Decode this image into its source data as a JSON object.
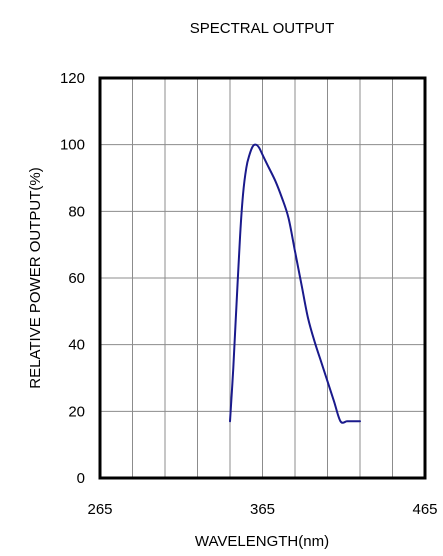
{
  "chart_data": {
    "type": "line",
    "title": "SPECTRAL OUTPUT",
    "xlabel": "WAVELENGTH(nm)",
    "ylabel": "RELATIVE POWER OUTPUT(%)",
    "xlim": [
      265,
      465
    ],
    "ylim": [
      0,
      120
    ],
    "x_ticks": [
      265,
      365,
      465
    ],
    "y_ticks": [
      0,
      20,
      40,
      60,
      80,
      100,
      120
    ],
    "x_grid": [
      285,
      305,
      325,
      345,
      365,
      385,
      405,
      425,
      445
    ],
    "y_grid": [
      20,
      40,
      60,
      80,
      100
    ],
    "grid": true,
    "legend": "none",
    "series": [
      {
        "color": "#1a1a8c",
        "x": [
          345,
          347,
          349,
          351,
          353,
          355,
          357,
          359,
          361,
          363,
          365,
          369,
          373,
          377,
          381,
          385,
          389,
          393,
          397,
          401,
          405,
          409,
          413,
          417,
          421,
          425
        ],
        "y": [
          17,
          33,
          52,
          71,
          85,
          93,
          97,
          99.5,
          100,
          99,
          97,
          93,
          89,
          84,
          78,
          68,
          58,
          48,
          41,
          35,
          29,
          23,
          17,
          17,
          17,
          17
        ]
      }
    ]
  }
}
